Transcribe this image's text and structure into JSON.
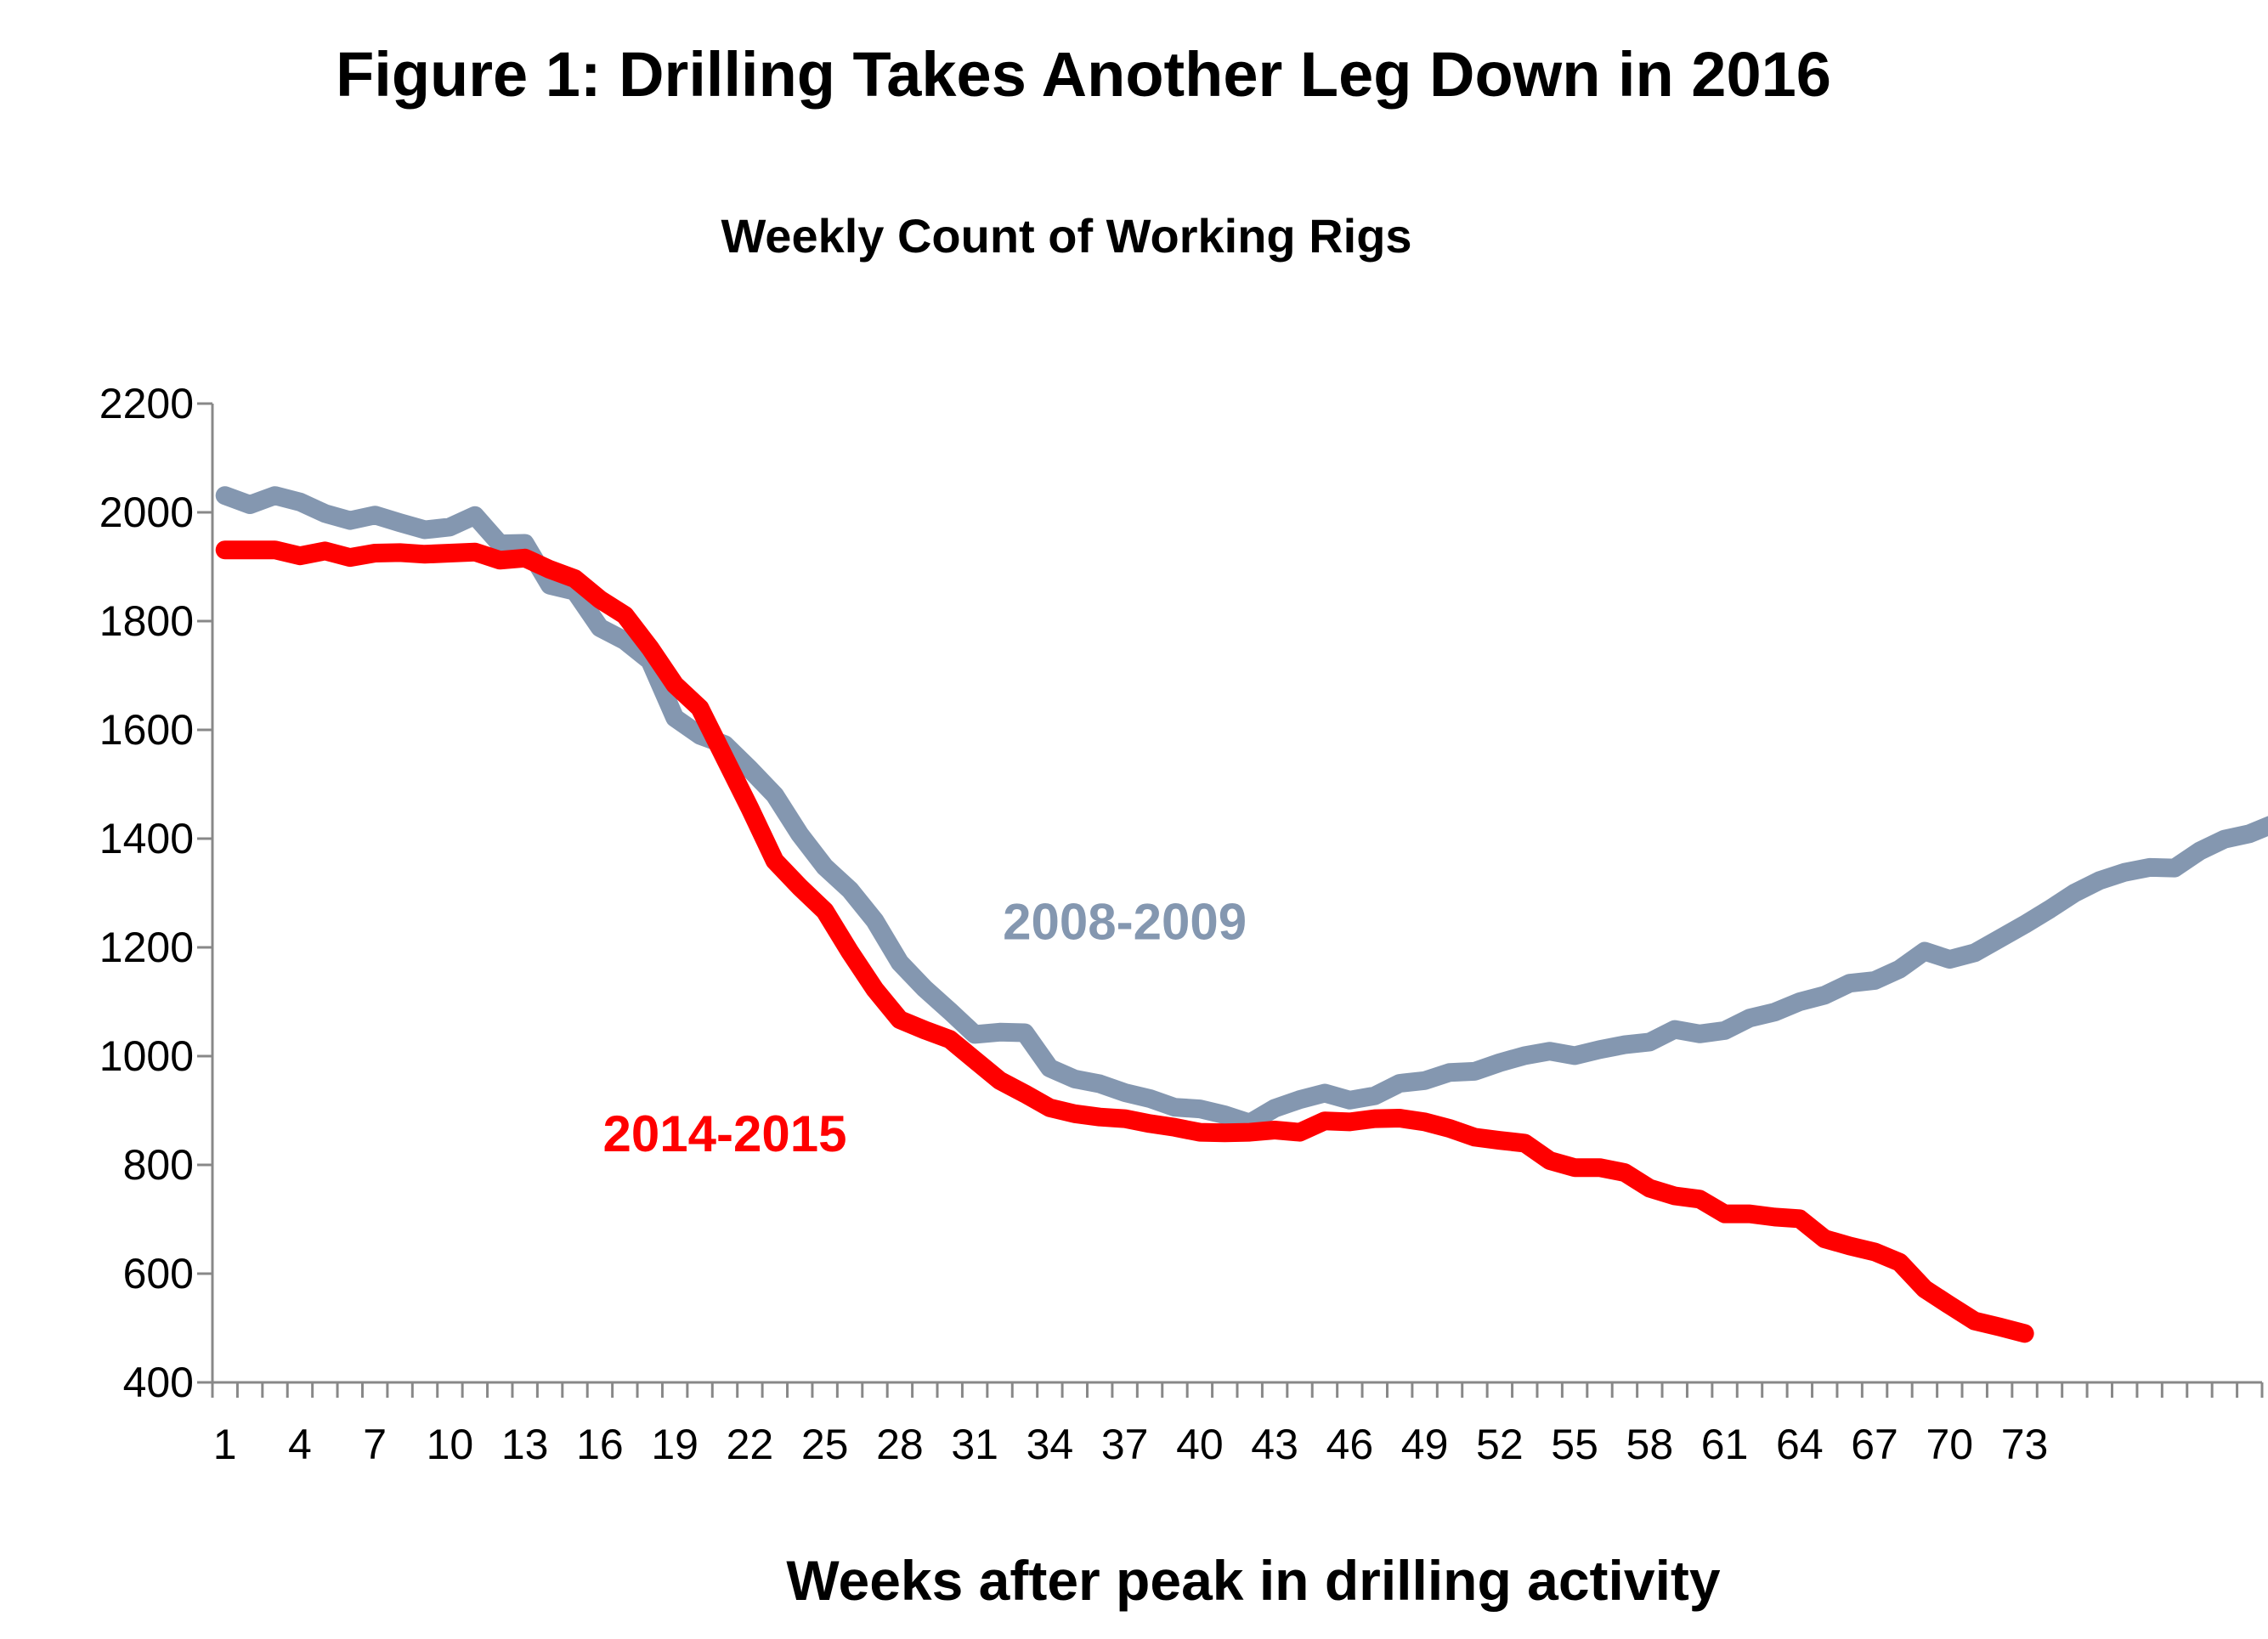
{
  "chart_data": {
    "type": "line",
    "title": "Figure 1: Drilling Takes Another Leg Down in 2016",
    "subtitle": "Weekly Count of Working Rigs",
    "xlabel": "Weeks after peak in drilling activity",
    "ylabel": "",
    "ylim": [
      400,
      2200
    ],
    "yticks": [
      400,
      600,
      800,
      1000,
      1200,
      1400,
      1600,
      1800,
      2000,
      2200
    ],
    "xlim": [
      1,
      82
    ],
    "xtick_labels": [
      "1",
      "4",
      "7",
      "10",
      "13",
      "16",
      "19",
      "22",
      "25",
      "28",
      "31",
      "34",
      "37",
      "40",
      "43",
      "46",
      "49",
      "52",
      "55",
      "58",
      "61",
      "64",
      "67",
      "70",
      "73"
    ],
    "grid": false,
    "legend": "none",
    "series": [
      {
        "name": "2008-2009",
        "color": "#8497B0",
        "values": [
          2031,
          2014,
          2031,
          2019,
          1998,
          1985,
          1995,
          1981,
          1968,
          1973,
          1994,
          1942,
          1943,
          1866,
          1855,
          1788,
          1764,
          1727,
          1622,
          1590,
          1573,
          1528,
          1480,
          1408,
          1348,
          1306,
          1249,
          1172,
          1124,
          1083,
          1040,
          1044,
          1043,
          978,
          958,
          949,
          933,
          922,
          906,
          903,
          892,
          877,
          904,
          920,
          932,
          919,
          927,
          950,
          955,
          970,
          972,
          988,
          1001,
          1009,
          1001,
          1012,
          1021,
          1026,
          1049,
          1041,
          1047,
          1070,
          1081,
          1100,
          1112,
          1134,
          1139,
          1160,
          1193,
          1178,
          1190,
          1216,
          1242,
          1270,
          1300,
          1323,
          1338,
          1347,
          1346,
          1377,
          1399,
          1409,
          1428
        ]
      },
      {
        "name": "2014-2015",
        "color": "#FF0000",
        "values": [
          1931,
          1931,
          1931,
          1920,
          1929,
          1917,
          1925,
          1926,
          1923,
          1925,
          1927,
          1912,
          1916,
          1895,
          1878,
          1840,
          1811,
          1751,
          1683,
          1640,
          1548,
          1456,
          1359,
          1311,
          1267,
          1192,
          1123,
          1067,
          1048,
          1031,
          993,
          955,
          931,
          905,
          894,
          888,
          885,
          876,
          869,
          860,
          859,
          860,
          864,
          860,
          881,
          879,
          885,
          886,
          879,
          867,
          851,
          845,
          840,
          808,
          795,
          795,
          786,
          757,
          743,
          737,
          710,
          710,
          704,
          701,
          664,
          651,
          640,
          621,
          572,
          542,
          513,
          502,
          490
        ]
      }
    ],
    "annotations": [
      {
        "text": "2008-2009",
        "series": "2008-2009",
        "x": 37,
        "y": 1215
      },
      {
        "text": "2014-2015",
        "series": "2014-2015",
        "x": 21,
        "y": 825
      }
    ]
  }
}
